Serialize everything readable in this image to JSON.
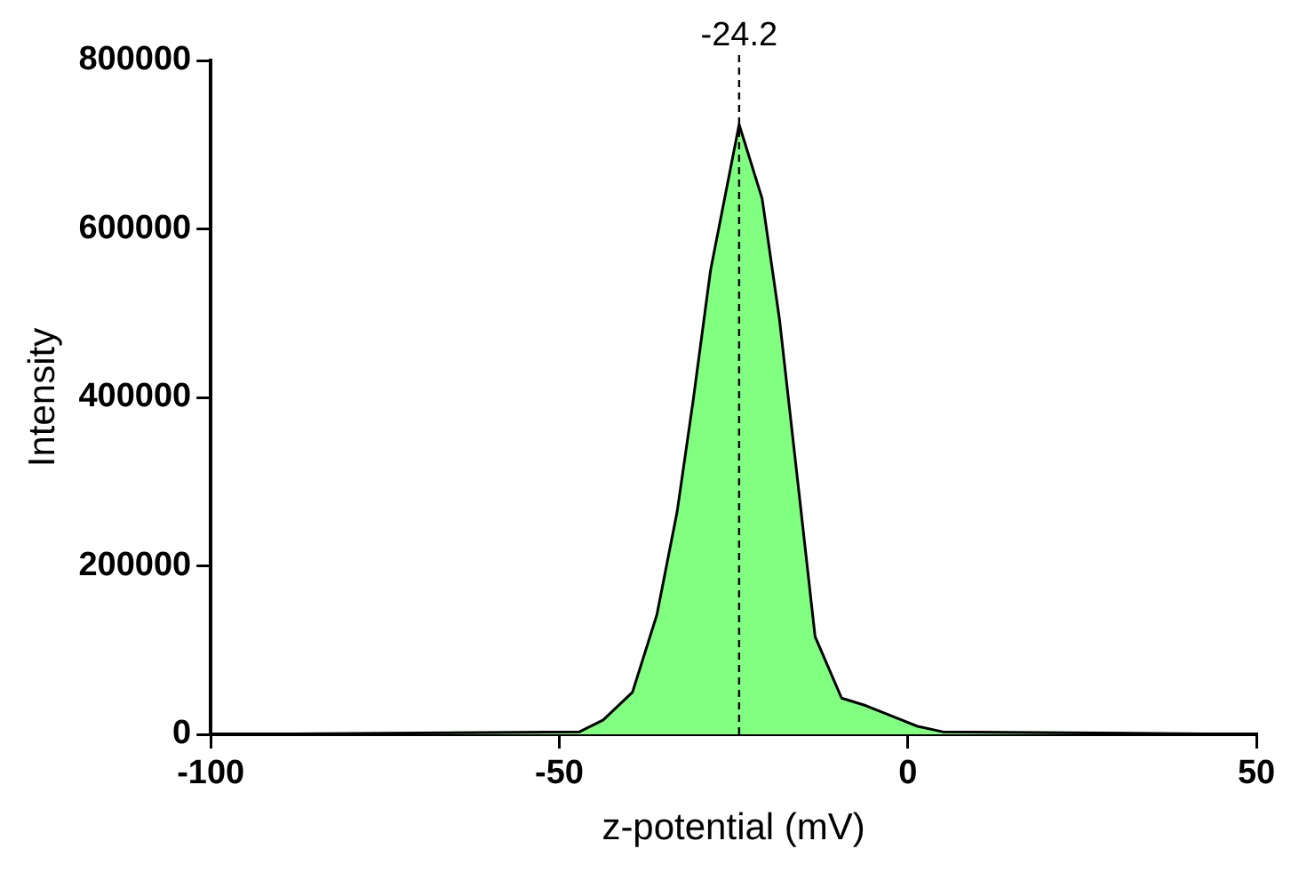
{
  "chart_data": {
    "type": "area",
    "xlabel": "z-potential (mV)",
    "ylabel": "Intensity",
    "x": [
      -100,
      -47.1,
      -43.7,
      -39.5,
      -36.0,
      -33.1,
      -30.8,
      -28.3,
      -24.2,
      -20.9,
      -18.4,
      -15.6,
      -13.3,
      -9.5,
      -6.0,
      1.4,
      5.0,
      50
    ],
    "series": [
      {
        "color": "#80ff80",
        "values": [
          0,
          3000,
          17000,
          50000,
          142000,
          264000,
          396000,
          551000,
          724000,
          636000,
          492000,
          286000,
          116000,
          43000,
          34000,
          9500,
          3000,
          0
        ]
      }
    ],
    "xlim": [
      -100,
      50
    ],
    "xticks": [
      -100,
      -50,
      0,
      50
    ],
    "ylim": [
      0,
      800000
    ],
    "yticks": [
      0,
      200000,
      400000,
      600000,
      800000
    ],
    "grid": false,
    "legend": false,
    "ref_lines": [
      {
        "axis": "x",
        "value": -24.2,
        "label": "-24.2",
        "color": "#000000",
        "line_style": "dashed"
      }
    ]
  }
}
